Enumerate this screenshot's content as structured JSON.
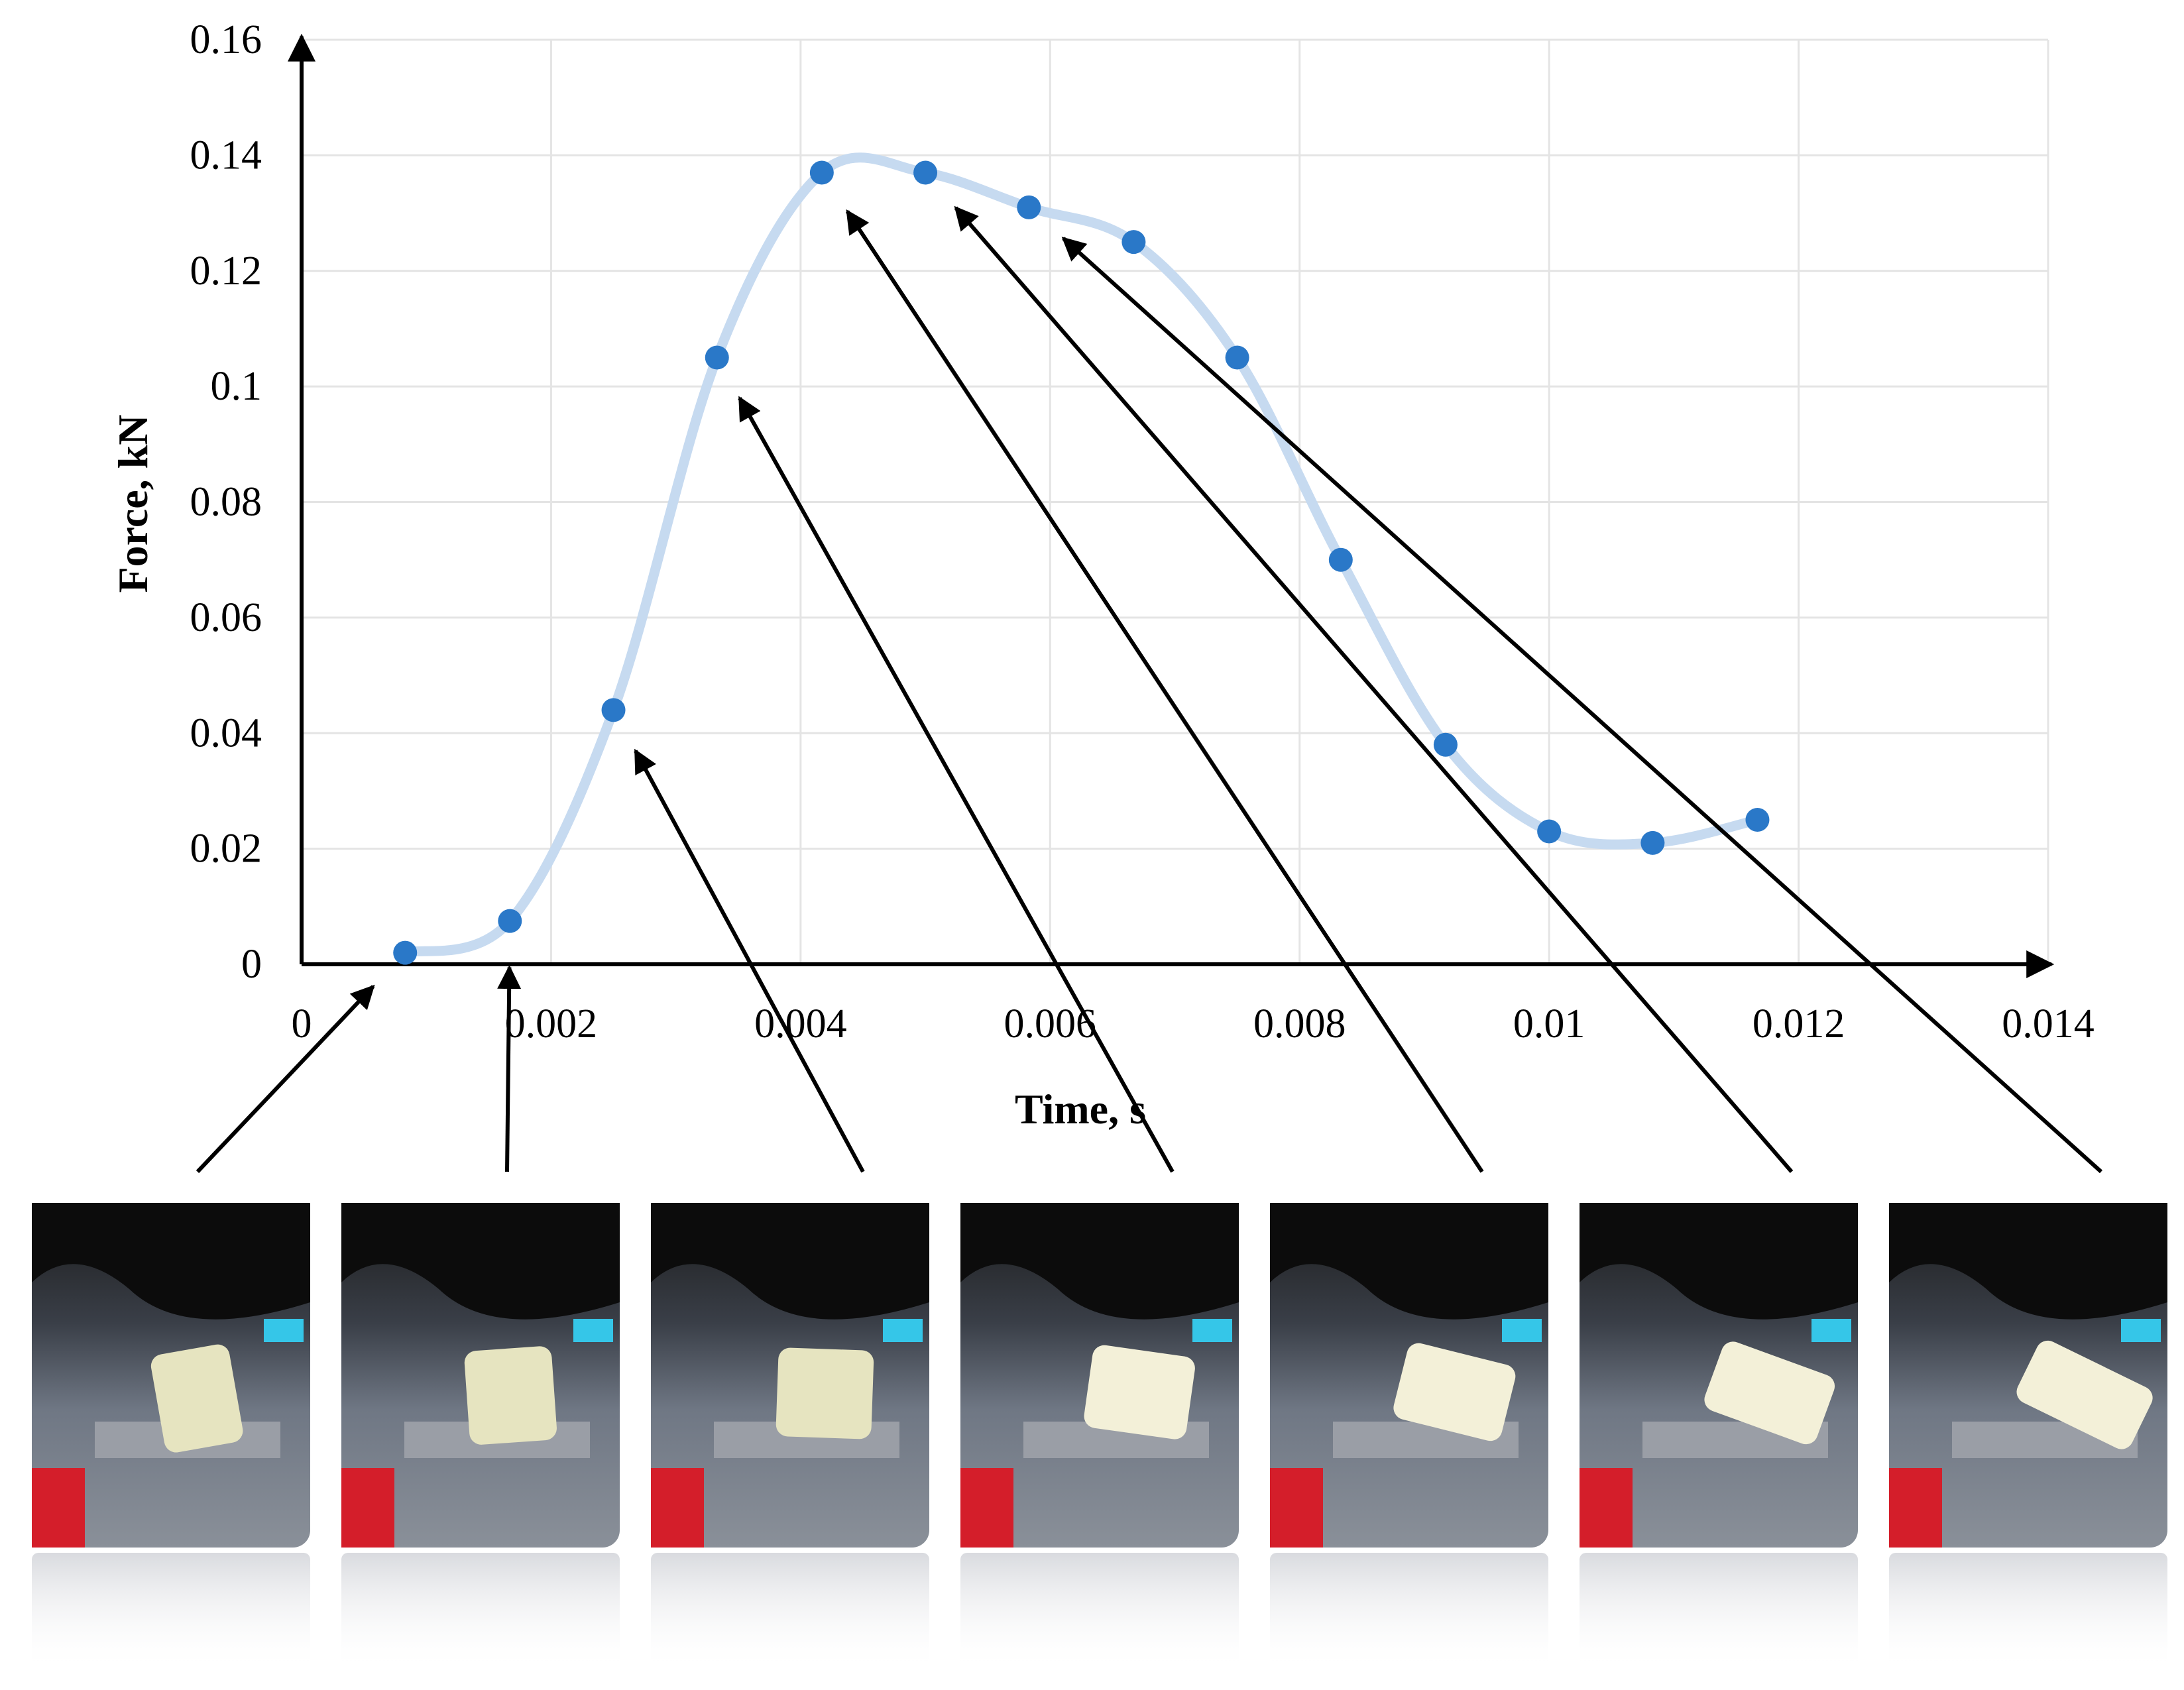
{
  "chart_data": {
    "type": "scatter",
    "xlabel": "Time, s",
    "ylabel": "Force, kN",
    "xlim": [
      0,
      0.014
    ],
    "ylim": [
      0,
      0.16
    ],
    "x_tick_labels": [
      "0",
      "0.002",
      "0.004",
      "0.006",
      "0.008",
      "0.01",
      "0.012",
      "0.014"
    ],
    "y_tick_labels": [
      "0",
      "0.02",
      "0.04",
      "0.06",
      "0.08",
      "0.1",
      "0.12",
      "0.14",
      "0.16"
    ],
    "grid": true,
    "smoothed_line": true,
    "series": [
      {
        "points": [
          {
            "x": 0.00083,
            "y": 0.002
          },
          {
            "x": 0.00167,
            "y": 0.0075
          },
          {
            "x": 0.0025,
            "y": 0.044
          },
          {
            "x": 0.00333,
            "y": 0.105
          },
          {
            "x": 0.00417,
            "y": 0.137
          },
          {
            "x": 0.005,
            "y": 0.137
          },
          {
            "x": 0.00583,
            "y": 0.131
          },
          {
            "x": 0.00667,
            "y": 0.125
          },
          {
            "x": 0.0075,
            "y": 0.105
          },
          {
            "x": 0.00833,
            "y": 0.07
          },
          {
            "x": 0.00917,
            "y": 0.038
          },
          {
            "x": 0.01,
            "y": 0.023
          },
          {
            "x": 0.01083,
            "y": 0.021
          },
          {
            "x": 0.01167,
            "y": 0.025
          }
        ]
      }
    ],
    "point_color": "#2a78c8",
    "line_color": "#c6daf0",
    "annotations": {
      "frame_count": 7,
      "frames_point_to": [
        {
          "x": 0.00083,
          "y": 0.002
        },
        {
          "x": 0.00167,
          "y": 0.0075
        },
        {
          "x": 0.0025,
          "y": 0.044
        },
        {
          "x": 0.00333,
          "y": 0.105
        },
        {
          "x": 0.00417,
          "y": 0.137
        },
        {
          "x": 0.005,
          "y": 0.137
        },
        {
          "x": 0.00583,
          "y": 0.131
        }
      ]
    }
  }
}
